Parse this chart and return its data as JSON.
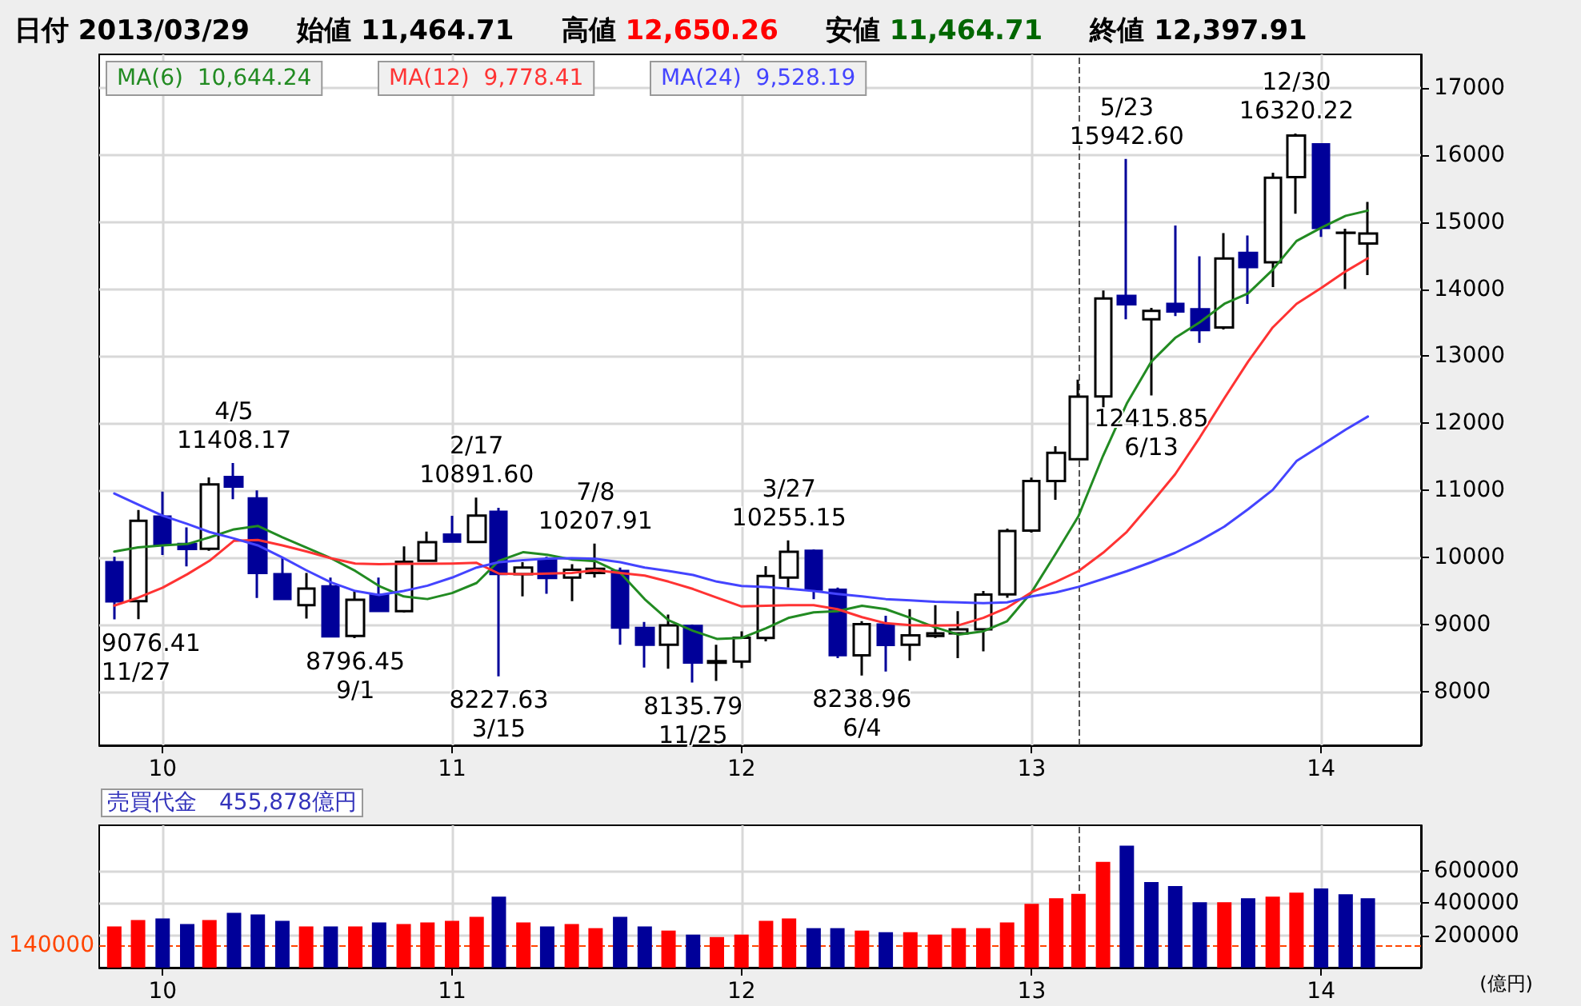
{
  "chart_data": [
    {
      "type": "candlestick",
      "title": "日付 2013/03/29",
      "annotations": [
        "始値 11,464.71",
        "高値 12,650.26",
        "安値 11,464.71",
        "終値 12,397.91",
        "10,644.24",
        "9,778.41",
        "9,528.19",
        {
          "text": "9076.41\n11/27",
          "x": "2009-11",
          "y": 9076.41
        },
        {
          "text": "4/5\n11408.17",
          "x": "2010-04",
          "y": 11408.17
        },
        {
          "text": "8796.45\n9/1",
          "x": "2010-09",
          "y": 8796.45
        },
        {
          "text": "2/17\n10891.60",
          "x": "2011-02",
          "y": 10891.6
        },
        {
          "text": "8227.63\n3/15",
          "x": "2011-03",
          "y": 8227.63
        },
        {
          "text": "7/8\n10207.91",
          "x": "2011-07",
          "y": 10207.91
        },
        {
          "text": "8135.79\n11/25",
          "x": "2011-11",
          "y": 8135.79
        },
        {
          "text": "3/27\n10255.15",
          "x": "2012-03",
          "y": 10255.15
        },
        {
          "text": "8238.96\n6/4",
          "x": "2012-06",
          "y": 8238.96
        },
        {
          "text": "5/23\n15942.60",
          "x": "2013-05",
          "y": 15942.6
        },
        {
          "text": "12415.85\n6/13",
          "x": "2013-06",
          "y": 12415.85
        },
        {
          "text": "12/30\n16320.22",
          "x": "2013-12",
          "y": 16320.22
        }
      ],
      "x": [
        "2009-11",
        "2009-12",
        "2010-01",
        "2010-02",
        "2010-03",
        "2010-04",
        "2010-05",
        "2010-06",
        "2010-07",
        "2010-08",
        "2010-09",
        "2010-10",
        "2010-11",
        "2010-12",
        "2011-01",
        "2011-02",
        "2011-03",
        "2011-04",
        "2011-05",
        "2011-06",
        "2011-07",
        "2011-08",
        "2011-09",
        "2011-10",
        "2011-11",
        "2011-12",
        "2012-01",
        "2012-02",
        "2012-03",
        "2012-04",
        "2012-05",
        "2012-06",
        "2012-07",
        "2012-08",
        "2012-09",
        "2012-10",
        "2012-11",
        "2012-12",
        "2013-01",
        "2013-02",
        "2013-03",
        "2013-04",
        "2013-05",
        "2013-06",
        "2013-07",
        "2013-08",
        "2013-09",
        "2013-10",
        "2013-11",
        "2013-12",
        "2014-01",
        "2014-02",
        "2014-03"
      ],
      "series": [
        {
          "type": "candlestick",
          "colors": [
            "#000099",
            "#ffffff",
            "#000099",
            "#000099",
            "#ffffff",
            "#000099",
            "#000099",
            "#000099",
            "#ffffff",
            "#000099",
            "#ffffff",
            "#000099",
            "#ffffff",
            "#ffffff",
            "#000099",
            "#ffffff",
            "#000099",
            "#ffffff",
            "#000099",
            "#ffffff",
            "#ffffff",
            "#000099",
            "#000099",
            "#ffffff",
            "#000099",
            "#ffffff",
            "#ffffff",
            "#ffffff",
            "#ffffff",
            "#000099",
            "#000099",
            "#ffffff",
            "#000099",
            "#ffffff",
            "#ffffff",
            "#ffffff",
            "#ffffff",
            "#ffffff",
            "#ffffff",
            "#ffffff",
            "#ffffff",
            "#ffffff",
            "#000099",
            "#ffffff",
            "#000099",
            "#000099",
            "#ffffff",
            "#000099",
            "#ffffff",
            "#ffffff",
            "#000099",
            "#ffffff",
            "#ffffff"
          ],
          "ohlc": [
            [
              9930,
              10010,
              9076.41,
              9345.55
            ],
            [
              9350,
              10707,
              9081,
              10546.44
            ],
            [
              10610,
              10982,
              10036,
              10198.04
            ],
            [
              10200,
              10450,
              9867,
              10126.03
            ],
            [
              10130,
              11194,
              10100,
              11089.94
            ],
            [
              11200,
              11408.17,
              10870,
              11057.4
            ],
            [
              10880,
              11000,
              9396,
              9768.7
            ],
            [
              9750,
              10000,
              9380,
              9382.64
            ],
            [
              9290,
              9770,
              9090,
              9537.3
            ],
            [
              9570,
              9700,
              8807,
              8824.06
            ],
            [
              8830,
              9496,
              8796.45,
              9369.35
            ],
            [
              9440,
              9700,
              9200,
              9202.45
            ],
            [
              9200,
              10165,
              9180,
              9937.04
            ],
            [
              9950,
              10386,
              9940,
              10228.92
            ],
            [
              10340,
              10620,
              10220,
              10237.92
            ],
            [
              10230,
              10891.6,
              10220,
              10624.09
            ],
            [
              10680,
              10740,
              8227.63,
              9755.1
            ],
            [
              9750,
              9930,
              9420,
              9849.74
            ],
            [
              9960,
              10010,
              9460,
              9693.73
            ],
            [
              9700,
              9900,
              9350,
              9816.09
            ],
            [
              9770,
              10207.91,
              9700,
              9833.03
            ],
            [
              9800,
              9850,
              8700,
              8955.2
            ],
            [
              8950,
              9040,
              8360,
              8700.29
            ],
            [
              8700,
              9150,
              8340,
              8988.39
            ],
            [
              8980,
              9000,
              8135.79,
              8434.61
            ],
            [
              8430,
              8700,
              8160,
              8455.35
            ],
            [
              8450,
              8900,
              8350,
              8802.51
            ],
            [
              8800,
              9870,
              8750,
              9723.24
            ],
            [
              9700,
              10255.15,
              9550,
              10083.56
            ],
            [
              10100,
              10120,
              9380,
              9520.89
            ],
            [
              9520,
              9550,
              8500,
              8542.73
            ],
            [
              8540,
              9050,
              8238.96,
              9006.78
            ],
            [
              9000,
              9130,
              8300,
              8695.06
            ],
            [
              8700,
              9230,
              8460,
              8839.91
            ],
            [
              8830,
              9290,
              8800,
              8870.16
            ],
            [
              8870,
              9200,
              8500,
              8928.29
            ],
            [
              8930,
              9500,
              8600,
              9446.01
            ],
            [
              9450,
              10430,
              9400,
              10395.18
            ],
            [
              10400,
              11190,
              10370,
              11138.66
            ],
            [
              11140,
              11660,
              10860,
              11559.36
            ],
            [
              11464.71,
              12650.26,
              11464.71,
              12397.91
            ],
            [
              12400,
              13980,
              12000,
              13860.86
            ],
            [
              13900,
              15942.6,
              13550,
              13774.54
            ],
            [
              13550,
              13720,
              12415.85,
              13677.32
            ],
            [
              13780,
              14950,
              13600,
              13668.32
            ],
            [
              13700,
              14490,
              13200,
              13388.86
            ],
            [
              13430,
              14835,
              13400,
              14455.8
            ],
            [
              14540,
              14800,
              13780,
              14327.94
            ],
            [
              14400,
              15735,
              14030,
              15661.87
            ],
            [
              15670,
              16320.22,
              15125,
              16291.31
            ],
            [
              16160,
              16165,
              14780,
              14914.53
            ],
            [
              14840,
              14900,
              14000,
              14841.07
            ],
            [
              14680,
              15300,
              14210,
              14830
            ]
          ]
        },
        {
          "type": "line",
          "name": "MA(6)",
          "color": "#228b22",
          "values": [
            10087,
            10150,
            10180,
            10200,
            10300,
            10420,
            10470,
            10300,
            10150,
            9990,
            9800,
            9575,
            9420,
            9380,
            9470,
            9620,
            9950,
            10080,
            10040,
            9970,
            9945,
            9772,
            9378,
            9063,
            8906,
            8787,
            8800,
            8945,
            9102,
            9181,
            9200,
            9280,
            9230,
            9100,
            8960,
            8850,
            8900,
            9050,
            9484,
            10070,
            10616,
            11515,
            12296,
            12921,
            13273,
            13507,
            13781,
            13937,
            14289,
            14718,
            14914,
            15093,
            15171
          ]
        },
        {
          "type": "line",
          "name": "MA(12)",
          "color": "#ff3333",
          "values": [
            9283,
            9400,
            9550,
            9750,
            9950,
            10250,
            10260,
            10180,
            10090,
            9990,
            9910,
            9900,
            9905,
            9905,
            9910,
            9920,
            9760,
            9750,
            9760,
            9770,
            9810,
            9770,
            9730,
            9640,
            9530,
            9400,
            9270,
            9280,
            9290,
            9290,
            9230,
            9110,
            9020,
            8990,
            8985,
            8990,
            9100,
            9250,
            9484,
            9640,
            9796,
            10070,
            10382,
            10812,
            11241,
            11789,
            12374,
            12921,
            13429,
            13781,
            14015,
            14265,
            14460
          ]
        },
        {
          "type": "line",
          "name": "MA(24)",
          "color": "#4444ff",
          "values": [
            10953,
            10790,
            10622,
            10500,
            10380,
            10283,
            10181,
            10000,
            9811,
            9630,
            9500,
            9441,
            9500,
            9580,
            9700,
            9850,
            9929,
            9960,
            9984,
            9990,
            9980,
            9930,
            9850,
            9800,
            9740,
            9640,
            9575,
            9560,
            9535,
            9500,
            9457,
            9420,
            9380,
            9360,
            9340,
            9330,
            9320,
            9330,
            9421,
            9480,
            9562,
            9680,
            9796,
            9930,
            10070,
            10250,
            10460,
            10720,
            11007,
            11437,
            11671,
            11905,
            12101
          ]
        }
      ],
      "xlim": [
        "2009-10-13",
        "2014-05-07"
      ],
      "xticks": [
        {
          "value": "2010-01",
          "label": "10"
        },
        {
          "value": "2011-01",
          "label": "11"
        },
        {
          "value": "2012-01",
          "label": "12"
        },
        {
          "value": "2013-01",
          "label": "13"
        },
        {
          "value": "2014-01",
          "label": "14"
        }
      ],
      "ylim": [
        7200,
        17500
      ],
      "yticks": [
        8000,
        9000,
        10000,
        11000,
        12000,
        13000,
        14000,
        15000,
        16000,
        17000
      ],
      "ref_lines": [
        {
          "axis": "x",
          "value": "2013-03",
          "color": "#555555",
          "line_style": "dashed"
        }
      ],
      "grid": true,
      "marker": "none",
      "line_style": "solid"
    },
    {
      "type": "bar",
      "title": "売買代金　455,878億円",
      "ylabel": "(億円)",
      "x": [
        "2009-11",
        "2009-12",
        "2010-01",
        "2010-02",
        "2010-03",
        "2010-04",
        "2010-05",
        "2010-06",
        "2010-07",
        "2010-08",
        "2010-09",
        "2010-10",
        "2010-11",
        "2010-12",
        "2011-01",
        "2011-02",
        "2011-03",
        "2011-04",
        "2011-05",
        "2011-06",
        "2011-07",
        "2011-08",
        "2011-09",
        "2011-10",
        "2011-11",
        "2011-12",
        "2012-01",
        "2012-02",
        "2012-03",
        "2012-04",
        "2012-05",
        "2012-06",
        "2012-07",
        "2012-08",
        "2012-09",
        "2012-10",
        "2012-11",
        "2012-12",
        "2013-01",
        "2013-02",
        "2013-03",
        "2013-04",
        "2013-05",
        "2013-06",
        "2013-07",
        "2013-08",
        "2013-09",
        "2013-10",
        "2013-11",
        "2013-12",
        "2014-01",
        "2014-02",
        "2014-03"
      ],
      "values": [
        254000,
        294000,
        304000,
        269000,
        294000,
        339000,
        329000,
        289000,
        254000,
        254000,
        254000,
        279000,
        269000,
        279000,
        289000,
        314000,
        439000,
        279000,
        254000,
        269000,
        244000,
        314000,
        254000,
        229000,
        204000,
        189000,
        204000,
        289000,
        304000,
        244000,
        244000,
        229000,
        219000,
        219000,
        204000,
        244000,
        244000,
        279000,
        394000,
        429000,
        456000,
        654000,
        754000,
        529000,
        504000,
        404000,
        404000,
        429000,
        439000,
        464000,
        489000,
        454000,
        429000
      ],
      "colors": [
        "#ff0000",
        "#ff0000",
        "#000099",
        "#000099",
        "#ff0000",
        "#000099",
        "#000099",
        "#000099",
        "#ff0000",
        "#000099",
        "#ff0000",
        "#000099",
        "#ff0000",
        "#ff0000",
        "#ff0000",
        "#ff0000",
        "#000099",
        "#ff0000",
        "#000099",
        "#ff0000",
        "#ff0000",
        "#000099",
        "#000099",
        "#ff0000",
        "#000099",
        "#ff0000",
        "#ff0000",
        "#ff0000",
        "#ff0000",
        "#000099",
        "#000099",
        "#ff0000",
        "#000099",
        "#ff0000",
        "#ff0000",
        "#ff0000",
        "#ff0000",
        "#ff0000",
        "#ff0000",
        "#ff0000",
        "#ff0000",
        "#ff0000",
        "#000099",
        "#000099",
        "#000099",
        "#000099",
        "#ff0000",
        "#000099",
        "#ff0000",
        "#ff0000",
        "#000099",
        "#000099",
        "#000099"
      ],
      "xlim": [
        "2009-10-13",
        "2014-05-07"
      ],
      "xticks": [
        {
          "value": "2010-01",
          "label": "10"
        },
        {
          "value": "2011-01",
          "label": "11"
        },
        {
          "value": "2012-01",
          "label": "12"
        },
        {
          "value": "2013-01",
          "label": "13"
        },
        {
          "value": "2014-01",
          "label": "14"
        }
      ],
      "ylim": [
        0,
        880000
      ],
      "yticks": [
        200000,
        400000,
        600000
      ],
      "ref_lines": [
        {
          "axis": "x",
          "value": "2013-03",
          "color": "#555555",
          "line_style": "dashed"
        },
        {
          "axis": "y",
          "value": 140000,
          "label": "140000",
          "color": "#ff4500",
          "line_style": "dashed"
        }
      ],
      "grid": true
    }
  ]
}
